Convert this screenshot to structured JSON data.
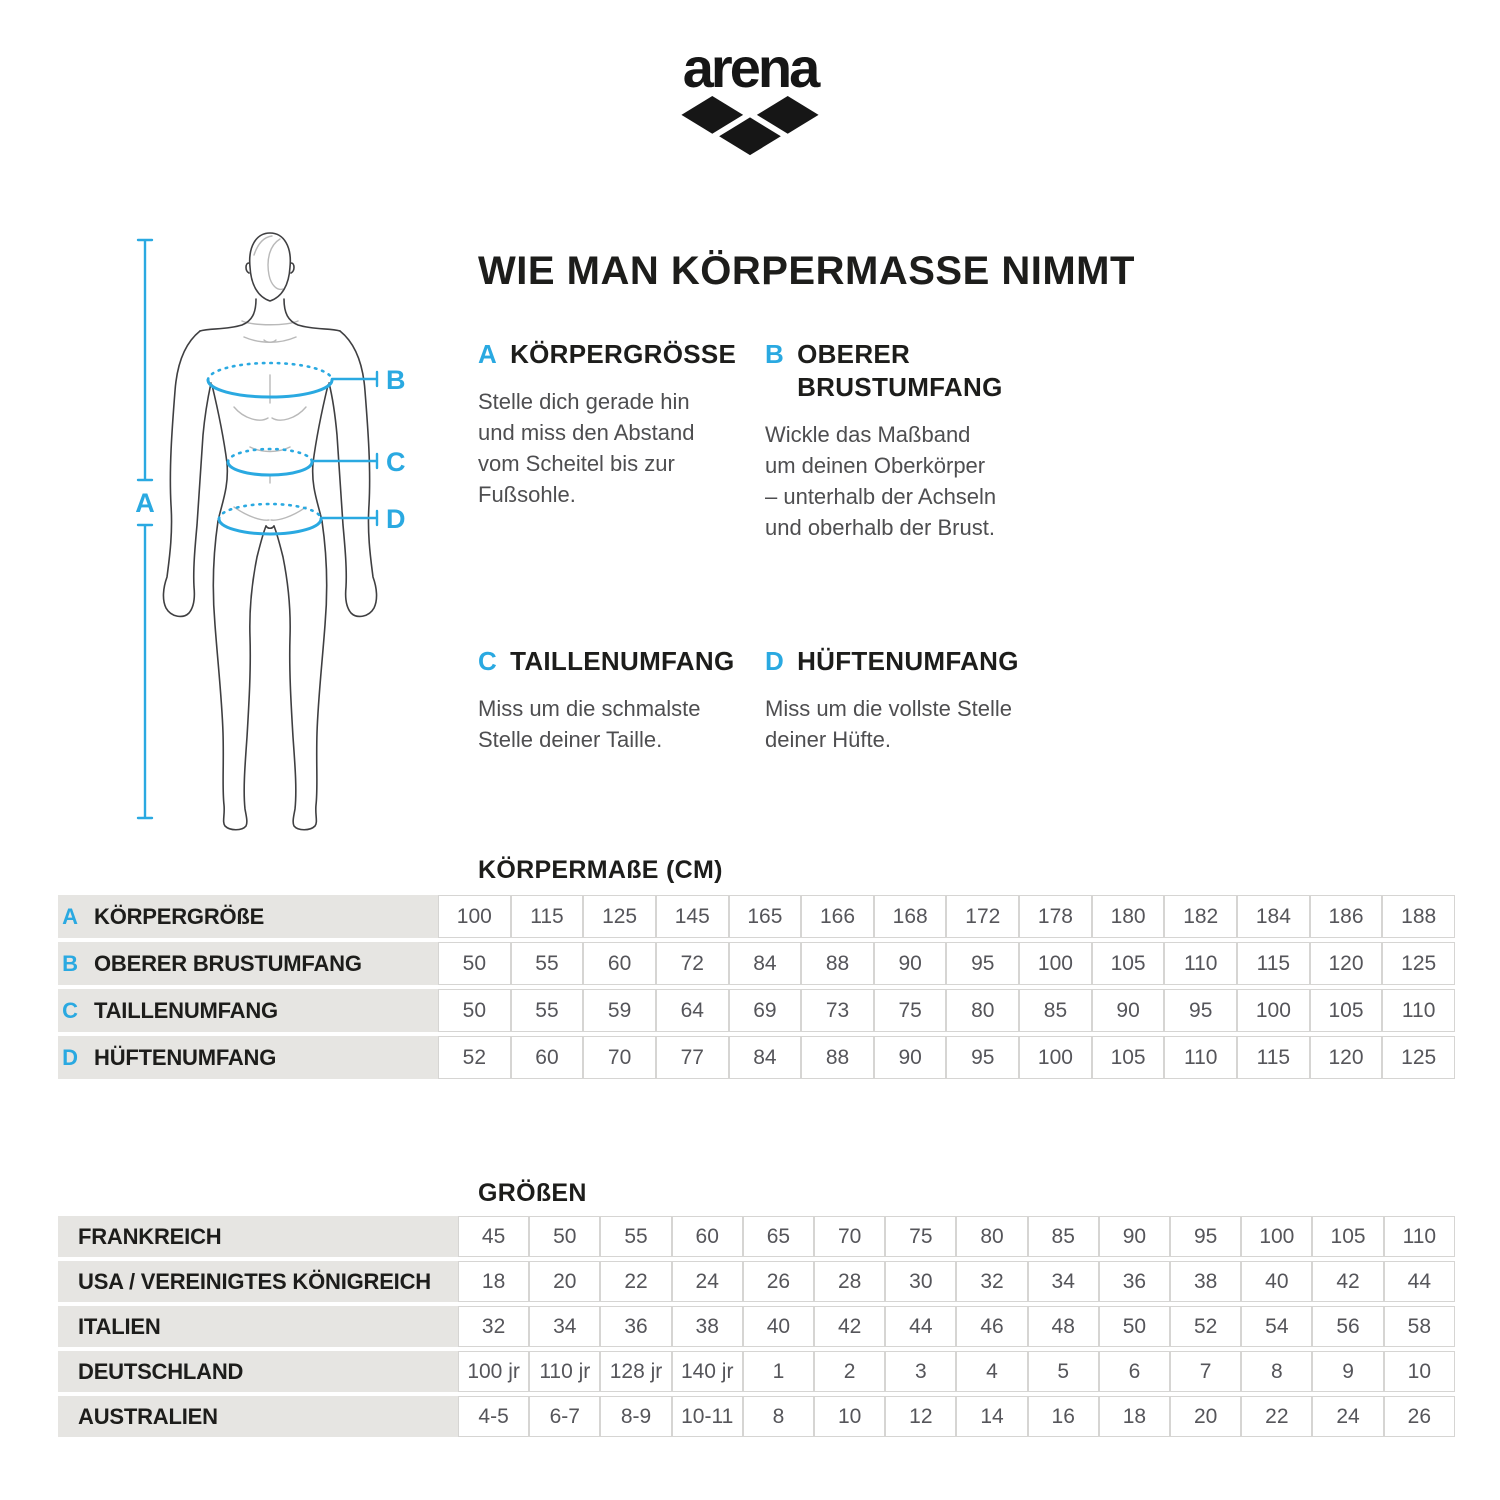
{
  "logo": {
    "brand": "arena"
  },
  "title": "WIE MAN KÖRPERMASSE NIMMT",
  "diagram": {
    "labels": {
      "a": "A",
      "b": "B",
      "c": "C",
      "d": "D"
    },
    "accent_blue": "#2aa9e1"
  },
  "sections": [
    {
      "letter": "A",
      "heading": "KÖRPERGRÖSSE",
      "body": "Stelle dich gerade hin\nund miss den Abstand\nvom Scheitel bis zur\nFußsohle."
    },
    {
      "letter": "B",
      "heading": "OBERER\nBRUSTUMFANG",
      "body": "Wickle das Maßband\num deinen Oberkörper\n– unterhalb der Achseln\nund oberhalb der Brust."
    },
    {
      "letter": "C",
      "heading": "TAILLENUMFANG",
      "body": "Miss um die schmalste\nStelle deiner Taille."
    },
    {
      "letter": "D",
      "heading": "HÜFTENUMFANG",
      "body": "Miss um die vollste Stelle\ndeiner Hüfte."
    }
  ],
  "measurements_table": {
    "title": "KÖRPERMAßE (CM)",
    "rows": [
      {
        "letter": "A",
        "label": "KÖRPERGRÖßE",
        "values": [
          "100",
          "115",
          "125",
          "145",
          "165",
          "166",
          "168",
          "172",
          "178",
          "180",
          "182",
          "184",
          "186",
          "188"
        ]
      },
      {
        "letter": "B",
        "label": "OBERER BRUSTUMFANG",
        "values": [
          "50",
          "55",
          "60",
          "72",
          "84",
          "88",
          "90",
          "95",
          "100",
          "105",
          "110",
          "115",
          "120",
          "125"
        ]
      },
      {
        "letter": "C",
        "label": "TAILLENUMFANG",
        "values": [
          "50",
          "55",
          "59",
          "64",
          "69",
          "73",
          "75",
          "80",
          "85",
          "90",
          "95",
          "100",
          "105",
          "110"
        ]
      },
      {
        "letter": "D",
        "label": "HÜFTENUMFANG",
        "values": [
          "52",
          "60",
          "70",
          "77",
          "84",
          "88",
          "90",
          "95",
          "100",
          "105",
          "110",
          "115",
          "120",
          "125"
        ]
      }
    ]
  },
  "sizes_table": {
    "title": "GRÖßEN",
    "rows": [
      {
        "letter": "",
        "label": "FRANKREICH",
        "values": [
          "45",
          "50",
          "55",
          "60",
          "65",
          "70",
          "75",
          "80",
          "85",
          "90",
          "95",
          "100",
          "105",
          "110"
        ]
      },
      {
        "letter": "",
        "label": "USA / VEREINIGTES KÖNIGREICH",
        "values": [
          "18",
          "20",
          "22",
          "24",
          "26",
          "28",
          "30",
          "32",
          "34",
          "36",
          "38",
          "40",
          "42",
          "44"
        ]
      },
      {
        "letter": "",
        "label": "ITALIEN",
        "values": [
          "32",
          "34",
          "36",
          "38",
          "40",
          "42",
          "44",
          "46",
          "48",
          "50",
          "52",
          "54",
          "56",
          "58"
        ]
      },
      {
        "letter": "",
        "label": "DEUTSCHLAND",
        "values": [
          "100 jr",
          "110 jr",
          "128 jr",
          "140 jr",
          "1",
          "2",
          "3",
          "4",
          "5",
          "6",
          "7",
          "8",
          "9",
          "10"
        ]
      },
      {
        "letter": "",
        "label": "AUSTRALIEN",
        "values": [
          "4-5",
          "6-7",
          "8-9",
          "10-11",
          "8",
          "10",
          "12",
          "14",
          "16",
          "18",
          "20",
          "22",
          "24",
          "26"
        ]
      }
    ]
  },
  "colors": {
    "accent_blue": "#2aa9e1",
    "row_bg": "#e6e5e2",
    "cell_border": "#d6d5d3",
    "text_dark": "#1d1d1b",
    "text_gray": "#4e4e50"
  }
}
